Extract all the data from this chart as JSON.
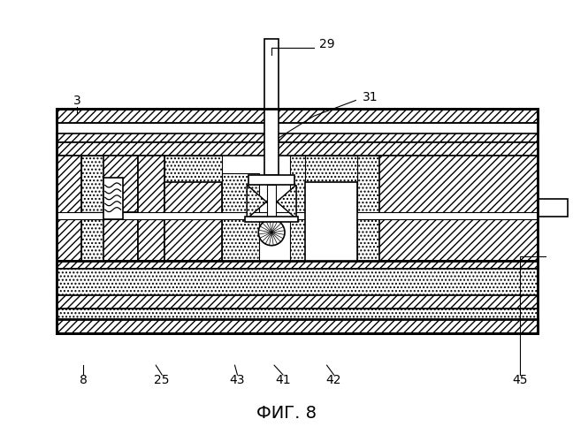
{
  "title": "ФИГ. 8",
  "title_fontsize": 14,
  "bg": "#ffffff",
  "lw_thick": 2.0,
  "lw_med": 1.2,
  "lw_thin": 0.8
}
